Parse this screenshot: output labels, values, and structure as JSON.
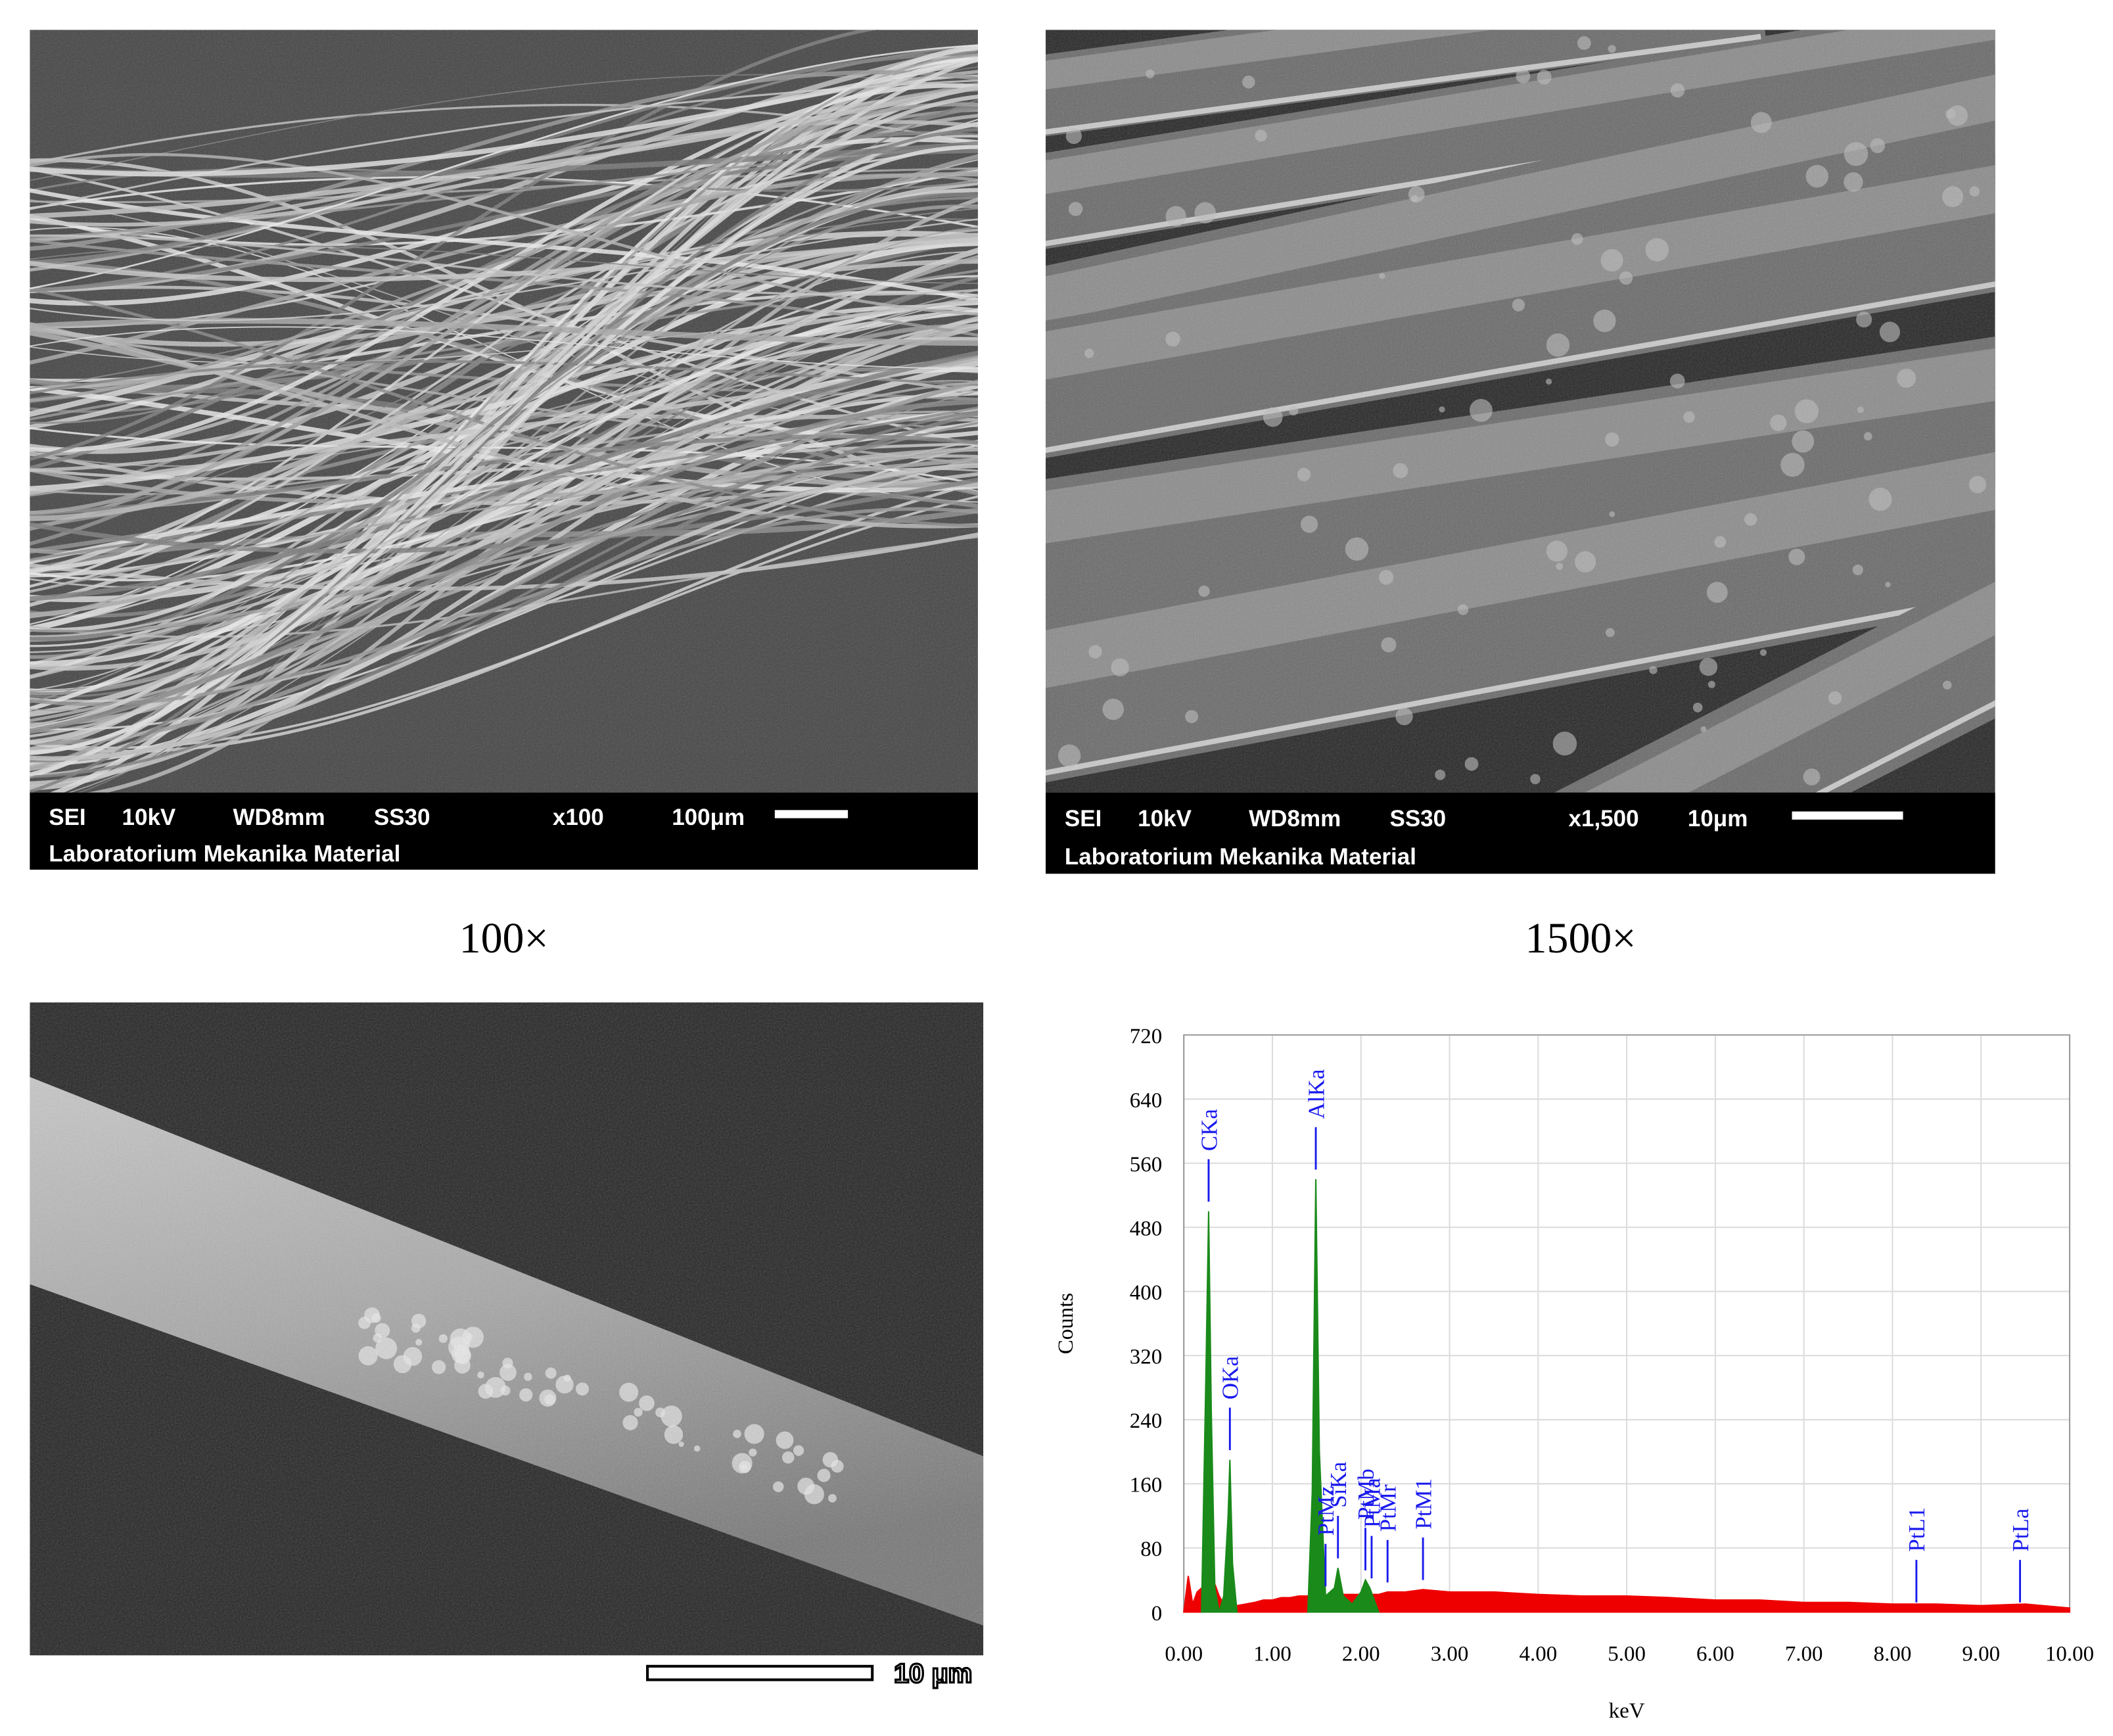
{
  "sem_images": [
    {
      "info": [
        "SEI",
        "10kV",
        "WD8mm",
        "SS30",
        "x100",
        "100μm"
      ],
      "lab": "Laboratorium Mekanika Material"
    },
    {
      "info": [
        "SEI",
        "10kV",
        "WD8mm",
        "SS30",
        "x1,500",
        "10μm"
      ],
      "lab": "Laboratorium Mekanika Material"
    }
  ],
  "captions": [
    "100×",
    "1500×"
  ],
  "scale_label": "10 μm",
  "chart_data": {
    "type": "area",
    "ylabel": "Counts",
    "xlabel": "keV",
    "x": [
      0,
      0.05,
      0.1,
      0.15,
      0.2,
      0.25,
      0.28,
      0.31,
      0.35,
      0.4,
      0.45,
      0.5,
      0.52,
      0.55,
      0.6,
      0.7,
      0.8,
      0.9,
      1.0,
      1.1,
      1.2,
      1.3,
      1.4,
      1.45,
      1.49,
      1.53,
      1.6,
      1.7,
      1.74,
      1.8,
      1.9,
      2.0,
      2.05,
      2.1,
      2.2,
      2.3,
      2.5,
      2.7,
      3.0,
      3.5,
      4.0,
      4.5,
      5.0,
      5.5,
      6.0,
      6.5,
      7.0,
      7.5,
      8.0,
      8.5,
      9.0,
      9.5,
      10.0
    ],
    "series": [
      {
        "color": "#ee0000",
        "values": [
          0,
          45,
          10,
          25,
          30,
          35,
          35,
          30,
          35,
          20,
          10,
          10,
          10,
          10,
          8,
          10,
          12,
          15,
          15,
          18,
          18,
          20,
          20,
          20,
          20,
          20,
          20,
          22,
          22,
          22,
          22,
          22,
          22,
          22,
          22,
          25,
          25,
          28,
          25,
          25,
          22,
          20,
          20,
          18,
          15,
          15,
          12,
          12,
          10,
          10,
          8,
          10,
          5
        ]
      },
      {
        "color": "#1a8a1a",
        "values": [
          null,
          null,
          null,
          null,
          0,
          300,
          500,
          250,
          30,
          0,
          20,
          120,
          190,
          60,
          0,
          null,
          null,
          null,
          null,
          null,
          null,
          null,
          0,
          150,
          540,
          200,
          20,
          30,
          55,
          20,
          10,
          25,
          40,
          30,
          0,
          null,
          null,
          null,
          null,
          null,
          null,
          null,
          null,
          null,
          null,
          null,
          null,
          null,
          null,
          null,
          null,
          null,
          null
        ]
      }
    ],
    "annotations": [
      {
        "label": "CKa",
        "x": 0.28
      },
      {
        "label": "OKa",
        "x": 0.52
      },
      {
        "label": "AlKa",
        "x": 1.49
      },
      {
        "label": "PtMz",
        "x": 1.6
      },
      {
        "label": "SiKa",
        "x": 1.74
      },
      {
        "label": "PtMb",
        "x": 2.05
      },
      {
        "label": "PtMa",
        "x": 2.12
      },
      {
        "label": "PtMr",
        "x": 2.3
      },
      {
        "label": "PtM1",
        "x": 2.7
      },
      {
        "label": "PtL1",
        "x": 8.27
      },
      {
        "label": "PtLa",
        "x": 9.44
      }
    ],
    "xlim": [
      0,
      10
    ],
    "ylim": [
      0,
      720
    ],
    "xticks": [
      {
        "value": 0,
        "label": "0.00"
      },
      {
        "value": 1,
        "label": "1.00"
      },
      {
        "value": 2,
        "label": "2.00"
      },
      {
        "value": 3,
        "label": "3.00"
      },
      {
        "value": 4,
        "label": "4.00"
      },
      {
        "value": 5,
        "label": "5.00"
      },
      {
        "value": 6,
        "label": "6.00"
      },
      {
        "value": 7,
        "label": "7.00"
      },
      {
        "value": 8,
        "label": "8.00"
      },
      {
        "value": 9,
        "label": "9.00"
      },
      {
        "value": 10,
        "label": "10.00"
      }
    ],
    "yticks": [
      0,
      80,
      160,
      240,
      320,
      400,
      480,
      560,
      640,
      720
    ],
    "grid": true
  }
}
